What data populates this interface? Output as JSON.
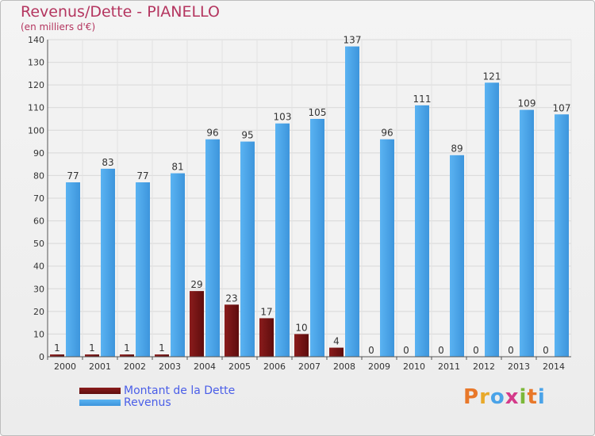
{
  "title": "Revenus/Dette - PIANELLO",
  "subtitle": "(en milliers d'€)",
  "colors": {
    "dette": "#7a1414",
    "revenus": "#4aa3e8",
    "title": "#b4355f",
    "legend_text": "#4a5ee8"
  },
  "legend": {
    "items": [
      {
        "label": "Montant de la Dette",
        "color": "#7a1414"
      },
      {
        "label": "Revenus",
        "color": "#4aa3e8"
      }
    ]
  },
  "logo": {
    "text": "Proxiti",
    "letters": [
      "P",
      "r",
      "o",
      "x",
      "i",
      "t",
      "i"
    ]
  },
  "chart_data": {
    "type": "bar",
    "title": "Revenus/Dette - PIANELLO",
    "ylabel": "(en milliers d'€)",
    "xlabel": "",
    "ylim": [
      0,
      140
    ],
    "yticks": [
      0,
      10,
      20,
      30,
      40,
      50,
      60,
      70,
      80,
      90,
      100,
      110,
      120,
      130,
      140
    ],
    "categories": [
      "2000",
      "2001",
      "2002",
      "2003",
      "2004",
      "2005",
      "2006",
      "2007",
      "2008",
      "2009",
      "2010",
      "2011",
      "2012",
      "2013",
      "2014"
    ],
    "series": [
      {
        "name": "Montant de la Dette",
        "values": [
          1,
          1,
          1,
          1,
          29,
          23,
          17,
          10,
          4,
          0,
          0,
          0,
          0,
          0,
          0
        ]
      },
      {
        "name": "Revenus",
        "values": [
          77,
          83,
          77,
          81,
          96,
          95,
          103,
          105,
          137,
          96,
          111,
          89,
          121,
          109,
          107
        ]
      }
    ],
    "grid": true,
    "legend": "bottom-left"
  }
}
